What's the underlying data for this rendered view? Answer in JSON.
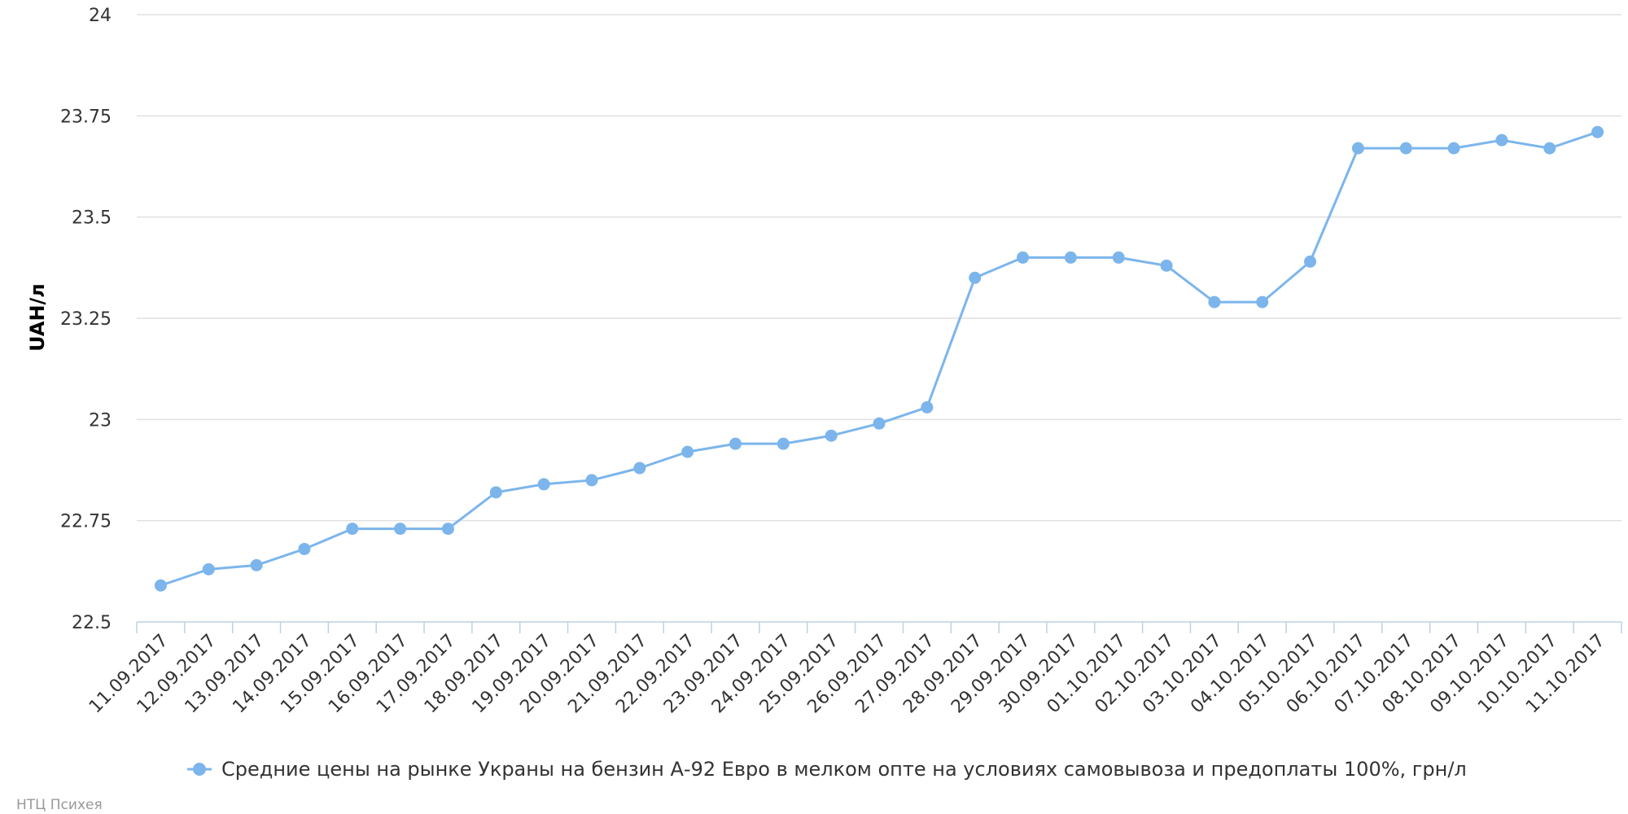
{
  "chart_data": {
    "type": "line",
    "ylabel": "UAH/л",
    "ylim": [
      22.5,
      24
    ],
    "yticks": [
      "22.5",
      "22.75",
      "23",
      "23.25",
      "23.5",
      "23.75",
      "24"
    ],
    "grid": true,
    "legend_position": "bottom-center",
    "categories": [
      "11.09.2017",
      "12.09.2017",
      "13.09.2017",
      "14.09.2017",
      "15.09.2017",
      "16.09.2017",
      "17.09.2017",
      "18.09.2017",
      "19.09.2017",
      "20.09.2017",
      "21.09.2017",
      "22.09.2017",
      "23.09.2017",
      "24.09.2017",
      "25.09.2017",
      "26.09.2017",
      "27.09.2017",
      "28.09.2017",
      "29.09.2017",
      "30.09.2017",
      "01.10.2017",
      "02.10.2017",
      "03.10.2017",
      "04.10.2017",
      "05.10.2017",
      "06.10.2017",
      "07.10.2017",
      "08.10.2017",
      "09.10.2017",
      "10.10.2017",
      "11.10.2017"
    ],
    "series": [
      {
        "name": "Средние цены на рынке Украны на бензин А-92 Евро в мелком опте на условиях самовывоза и предоплаты 100%, грн/л",
        "color": "#7cb5ec",
        "values": [
          22.59,
          22.63,
          22.64,
          22.68,
          22.73,
          22.73,
          22.73,
          22.82,
          22.84,
          22.85,
          22.88,
          22.92,
          22.94,
          22.94,
          22.96,
          22.99,
          23.03,
          23.35,
          23.4,
          23.4,
          23.4,
          23.38,
          23.29,
          23.29,
          23.39,
          23.67,
          23.67,
          23.67,
          23.69,
          23.67,
          23.71
        ]
      }
    ]
  },
  "credit": "НТЦ Психея"
}
